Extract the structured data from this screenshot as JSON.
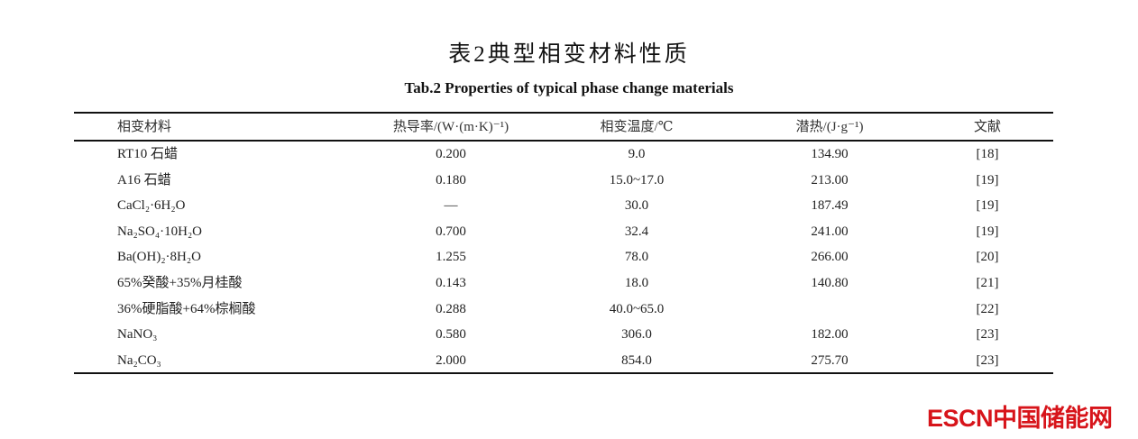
{
  "title_cn": "表2典型相变材料性质",
  "title_en": "Tab.2 Properties of typical phase change materials",
  "columns": [
    "相变材料",
    "热导率/(W·(m·K)⁻¹)",
    "相变温度/℃",
    "潜热/(J·g⁻¹)",
    "文献"
  ],
  "rows": [
    [
      "RT10 石蜡",
      "0.200",
      "9.0",
      "134.90",
      "[18]"
    ],
    [
      "A16 石蜡",
      "0.180",
      "15.0~17.0",
      "213.00",
      "[19]"
    ],
    [
      "CaCl₂·6H₂O",
      "—",
      "30.0",
      "187.49",
      "[19]"
    ],
    [
      "Na₂SO₄·10H₂O",
      "0.700",
      "32.4",
      "241.00",
      "[19]"
    ],
    [
      "Ba(OH)₂·8H₂O",
      "1.255",
      "78.0",
      "266.00",
      "[20]"
    ],
    [
      "65%癸酸+35%月桂酸",
      "0.143",
      "18.0",
      "140.80",
      "[21]"
    ],
    [
      "36%硬脂酸+64%棕榈酸",
      "0.288",
      "40.0~65.0",
      "",
      "[22]"
    ],
    [
      "NaNO₃",
      "0.580",
      "306.0",
      "182.00",
      "[23]"
    ],
    [
      "Na₂CO₃",
      "2.000",
      "854.0",
      "275.70",
      "[23]"
    ]
  ],
  "watermark": "ESCN中国储能网",
  "brand_color": "#d7141a"
}
